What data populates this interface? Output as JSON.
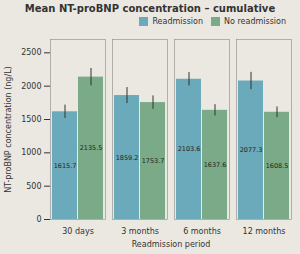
{
  "chart_data": {
    "type": "bar",
    "title": "Mean NT-proBNP concentration – cumulative",
    "xlabel": "Readmission period",
    "ylabel": "NT-proBNP concentration (ng/L)",
    "categories": [
      "30 days",
      "3 months",
      "6 months",
      "12 months"
    ],
    "series": [
      {
        "name": "Readmission",
        "color": "#6aaaba",
        "values": [
          1615.7,
          1859.2,
          2103.6,
          2077.3
        ],
        "errors": [
          100,
          120,
          100,
          130
        ]
      },
      {
        "name": "No readmission",
        "color": "#7aaa88",
        "values": [
          2135.5,
          1753.7,
          1637.6,
          1608.5
        ],
        "errors": [
          130,
          100,
          85,
          80
        ]
      }
    ],
    "ylim": [
      0,
      2700
    ],
    "yticks": [
      0,
      500,
      1000,
      1500,
      2000,
      2500
    ],
    "legend": "upper right",
    "data_labels": true,
    "grid": false
  }
}
